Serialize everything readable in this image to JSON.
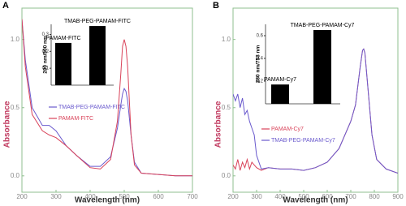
{
  "chart_data": [
    {
      "type": "line",
      "panel": "A",
      "xlabel": "Wavelength (nm)",
      "ylabel": "Absorbance",
      "x": [
        200,
        210,
        230,
        260,
        280,
        300,
        330,
        360,
        400,
        430,
        460,
        480,
        490,
        495,
        500,
        505,
        510,
        520,
        530,
        550,
        600,
        650,
        700
      ],
      "series": [
        {
          "name": "TMAB-PEG-PAMAM-FITC",
          "color": "#6a5acd",
          "values": [
            1.15,
            0.85,
            0.5,
            0.37,
            0.37,
            0.33,
            0.22,
            0.15,
            0.07,
            0.07,
            0.14,
            0.35,
            0.52,
            0.6,
            0.64,
            0.62,
            0.55,
            0.3,
            0.1,
            0.02,
            0.01,
            0.0,
            0.0
          ]
        },
        {
          "name": "PAMAM-FITC",
          "color": "#d9435a",
          "values": [
            1.15,
            0.8,
            0.45,
            0.33,
            0.3,
            0.28,
            0.22,
            0.15,
            0.06,
            0.05,
            0.12,
            0.4,
            0.75,
            0.95,
            1.0,
            0.95,
            0.8,
            0.3,
            0.08,
            0.02,
            0.01,
            0.0,
            0.0
          ]
        }
      ],
      "xlim": [
        200,
        700
      ],
      "xticks": [
        200,
        300,
        400,
        500,
        600,
        700
      ],
      "ylim": [
        -0.12,
        1.23
      ],
      "yticks": [
        {
          "value": 0,
          "label": "0.0"
        },
        {
          "value": 0.5,
          "label": "0.5"
        },
        {
          "value": 1,
          "label": "1.0"
        }
      ]
    },
    {
      "type": "bar",
      "ylabel": "280 nm/500 nm",
      "categories": [
        "PAMAM-FITC",
        "TMAB-PEG-PAMAM-FITC"
      ],
      "values": [
        0.25,
        0.35
      ],
      "color": "#000000",
      "ylim": [
        0,
        0.36
      ],
      "yticks": [
        0.1,
        0.2,
        0.3
      ]
    },
    {
      "type": "line",
      "panel": "B",
      "xlabel": "Wavelength (nm)",
      "ylabel": "Absorbance",
      "x": [
        200,
        210,
        220,
        230,
        240,
        250,
        260,
        270,
        280,
        290,
        300,
        320,
        350,
        400,
        450,
        500,
        550,
        600,
        650,
        700,
        720,
        740,
        750,
        755,
        760,
        770,
        790,
        810,
        850,
        900
      ],
      "series": [
        {
          "name": "PAMAM-Cy7",
          "color": "#d9435a",
          "values": [
            0.08,
            0.05,
            0.12,
            0.04,
            0.1,
            0.06,
            0.12,
            0.05,
            0.1,
            0.08,
            0.06,
            0.04,
            0.06,
            0.05,
            0.05,
            0.04,
            0.06,
            0.1,
            0.2,
            0.4,
            0.52,
            0.8,
            0.92,
            0.93,
            0.9,
            0.7,
            0.3,
            0.12,
            0.05,
            0.02
          ]
        },
        {
          "name": "TMAB-PEG-PAMAM-Cy7",
          "color": "#6a5acd",
          "values": [
            0.6,
            0.55,
            0.6,
            0.5,
            0.57,
            0.45,
            0.48,
            0.4,
            0.35,
            0.3,
            0.15,
            0.05,
            0.06,
            0.05,
            0.05,
            0.04,
            0.06,
            0.1,
            0.2,
            0.4,
            0.52,
            0.8,
            0.92,
            0.93,
            0.9,
            0.7,
            0.3,
            0.12,
            0.05,
            0.02
          ]
        }
      ],
      "xlim": [
        200,
        900
      ],
      "xticks": [
        200,
        300,
        400,
        500,
        600,
        700,
        800,
        900
      ],
      "ylim": [
        -0.12,
        1.23
      ],
      "yticks": [
        {
          "value": 0,
          "label": "0.0"
        },
        {
          "value": 0.5,
          "label": "0.5"
        },
        {
          "value": 1,
          "label": "1.0"
        }
      ]
    },
    {
      "type": "bar",
      "ylabel": "280 nm/753 nm",
      "categories": [
        "PAMAM-Cy7",
        "TMAB-PEG-PAMAM-Cy7"
      ],
      "values": [
        0.17,
        0.65
      ],
      "color": "#000000",
      "ylim": [
        0,
        0.7
      ],
      "yticks": [
        0.2,
        0.4,
        0.6
      ]
    }
  ]
}
